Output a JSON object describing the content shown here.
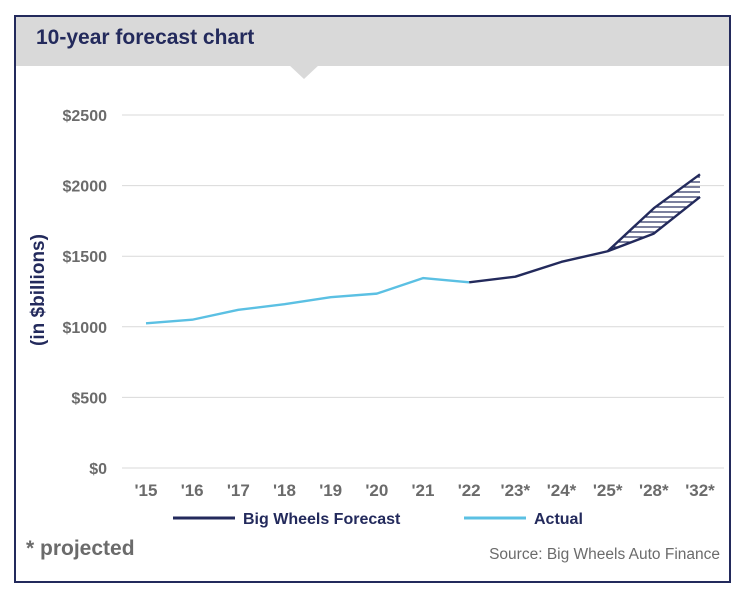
{
  "header": {
    "title": "10-year forecast chart"
  },
  "footnote": "* projected",
  "source": "Source: Big Wheels Auto Finance",
  "colors": {
    "forecast": "#232a5c",
    "actual": "#5bc0e3",
    "header_bg": "#d9d9d9",
    "grid": "#d9d9d9",
    "tick_text": "#6b6b6b"
  },
  "chart_data": {
    "type": "line",
    "title": "10-year forecast chart",
    "ylabel": "(in $billions)",
    "xlabel": "",
    "categories": [
      "'15",
      "'16",
      "'17",
      "'18",
      "'19",
      "'20",
      "'21",
      "'22",
      "'23*",
      "'24*",
      "'25*",
      "'28*",
      "'32*"
    ],
    "y_ticks": [
      "$0",
      "$500",
      "$1000",
      "$1500",
      "$2000",
      "$2500"
    ],
    "ylim": [
      0,
      2500
    ],
    "grid": true,
    "legend_position": "bottom",
    "series": [
      {
        "name": "Actual",
        "values": [
          1025,
          1050,
          1120,
          1160,
          1210,
          1235,
          1345,
          1315,
          null,
          null,
          null,
          null,
          null
        ]
      },
      {
        "name": "Big Wheels Forecast",
        "values": [
          null,
          null,
          null,
          null,
          null,
          null,
          null,
          1315,
          1355,
          1460,
          1535,
          1660,
          1920
        ]
      }
    ],
    "forecast_range_upper": [
      null,
      null,
      null,
      null,
      null,
      null,
      null,
      null,
      null,
      null,
      1535,
      1840,
      2080
    ]
  }
}
